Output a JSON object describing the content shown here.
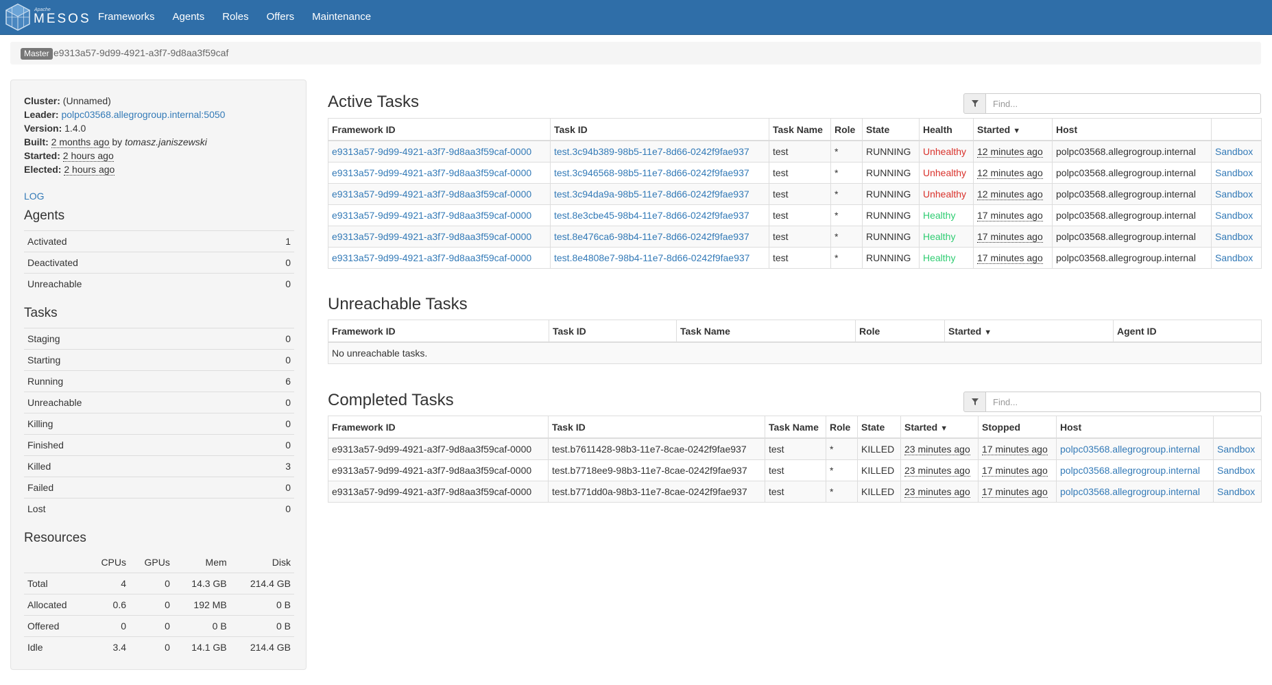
{
  "nav": {
    "logo_small": "Apache",
    "logo_text": "MESOS",
    "items": [
      "Frameworks",
      "Agents",
      "Roles",
      "Offers",
      "Maintenance"
    ]
  },
  "breadcrumb": {
    "badge": "Master",
    "master_id": "e9313a57-9d99-4921-a3f7-9d8aa3f59caf"
  },
  "sidebar": {
    "cluster_label": "Cluster:",
    "cluster_value": "(Unnamed)",
    "leader_label": "Leader:",
    "leader_value": "polpc03568.allegrogroup.internal:5050",
    "version_label": "Version:",
    "version_value": "1.4.0",
    "built_label": "Built:",
    "built_value": "2 months ago",
    "built_by": "by",
    "built_user": "tomasz.janiszewski",
    "started_label": "Started:",
    "started_value": "2 hours ago",
    "elected_label": "Elected:",
    "elected_value": "2 hours ago",
    "log_link": "LOG",
    "agents_title": "Agents",
    "agents": [
      {
        "label": "Activated",
        "value": "1"
      },
      {
        "label": "Deactivated",
        "value": "0"
      },
      {
        "label": "Unreachable",
        "value": "0"
      }
    ],
    "tasks_title": "Tasks",
    "tasks": [
      {
        "label": "Staging",
        "value": "0"
      },
      {
        "label": "Starting",
        "value": "0"
      },
      {
        "label": "Running",
        "value": "6"
      },
      {
        "label": "Unreachable",
        "value": "0"
      },
      {
        "label": "Killing",
        "value": "0"
      },
      {
        "label": "Finished",
        "value": "0"
      },
      {
        "label": "Killed",
        "value": "3"
      },
      {
        "label": "Failed",
        "value": "0"
      },
      {
        "label": "Lost",
        "value": "0"
      }
    ],
    "resources_title": "Resources",
    "resources_headers": [
      "",
      "CPUs",
      "GPUs",
      "Mem",
      "Disk"
    ],
    "resources": [
      [
        "Total",
        "4",
        "0",
        "14.3 GB",
        "214.4 GB"
      ],
      [
        "Allocated",
        "0.6",
        "0",
        "192 MB",
        "0 B"
      ],
      [
        "Offered",
        "0",
        "0",
        "0 B",
        "0 B"
      ],
      [
        "Idle",
        "3.4",
        "0",
        "14.1 GB",
        "214.4 GB"
      ]
    ]
  },
  "active": {
    "title": "Active Tasks",
    "find_placeholder": "Find...",
    "headers": [
      "Framework ID",
      "Task ID",
      "Task Name",
      "Role",
      "State",
      "Health",
      "Started",
      "Host",
      ""
    ],
    "sort_arrow": "▼",
    "rows": [
      {
        "framework": "e9313a57-9d99-4921-a3f7-9d8aa3f59caf-0000",
        "task": "test.3c94b389-98b5-11e7-8d66-0242f9fae937",
        "name": "test",
        "role": "*",
        "state": "RUNNING",
        "health": "Unhealthy",
        "started": "12 minutes ago",
        "host": "polpc03568.allegrogroup.internal",
        "link": "Sandbox"
      },
      {
        "framework": "e9313a57-9d99-4921-a3f7-9d8aa3f59caf-0000",
        "task": "test.3c946568-98b5-11e7-8d66-0242f9fae937",
        "name": "test",
        "role": "*",
        "state": "RUNNING",
        "health": "Unhealthy",
        "started": "12 minutes ago",
        "host": "polpc03568.allegrogroup.internal",
        "link": "Sandbox"
      },
      {
        "framework": "e9313a57-9d99-4921-a3f7-9d8aa3f59caf-0000",
        "task": "test.3c94da9a-98b5-11e7-8d66-0242f9fae937",
        "name": "test",
        "role": "*",
        "state": "RUNNING",
        "health": "Unhealthy",
        "started": "12 minutes ago",
        "host": "polpc03568.allegrogroup.internal",
        "link": "Sandbox"
      },
      {
        "framework": "e9313a57-9d99-4921-a3f7-9d8aa3f59caf-0000",
        "task": "test.8e3cbe45-98b4-11e7-8d66-0242f9fae937",
        "name": "test",
        "role": "*",
        "state": "RUNNING",
        "health": "Healthy",
        "started": "17 minutes ago",
        "host": "polpc03568.allegrogroup.internal",
        "link": "Sandbox"
      },
      {
        "framework": "e9313a57-9d99-4921-a3f7-9d8aa3f59caf-0000",
        "task": "test.8e476ca6-98b4-11e7-8d66-0242f9fae937",
        "name": "test",
        "role": "*",
        "state": "RUNNING",
        "health": "Healthy",
        "started": "17 minutes ago",
        "host": "polpc03568.allegrogroup.internal",
        "link": "Sandbox"
      },
      {
        "framework": "e9313a57-9d99-4921-a3f7-9d8aa3f59caf-0000",
        "task": "test.8e4808e7-98b4-11e7-8d66-0242f9fae937",
        "name": "test",
        "role": "*",
        "state": "RUNNING",
        "health": "Healthy",
        "started": "17 minutes ago",
        "host": "polpc03568.allegrogroup.internal",
        "link": "Sandbox"
      }
    ]
  },
  "unreachable": {
    "title": "Unreachable Tasks",
    "headers": [
      "Framework ID",
      "Task ID",
      "Task Name",
      "Role",
      "Started",
      "Agent ID"
    ],
    "sort_arrow": "▼",
    "empty": "No unreachable tasks."
  },
  "completed": {
    "title": "Completed Tasks",
    "find_placeholder": "Find...",
    "headers": [
      "Framework ID",
      "Task ID",
      "Task Name",
      "Role",
      "State",
      "Started",
      "Stopped",
      "Host",
      ""
    ],
    "sort_arrow": "▼",
    "rows": [
      {
        "framework": "e9313a57-9d99-4921-a3f7-9d8aa3f59caf-0000",
        "task": "test.b7611428-98b3-11e7-8cae-0242f9fae937",
        "name": "test",
        "role": "*",
        "state": "KILLED",
        "started": "23 minutes ago",
        "stopped": "17 minutes ago",
        "host": "polpc03568.allegrogroup.internal",
        "link": "Sandbox"
      },
      {
        "framework": "e9313a57-9d99-4921-a3f7-9d8aa3f59caf-0000",
        "task": "test.b7718ee9-98b3-11e7-8cae-0242f9fae937",
        "name": "test",
        "role": "*",
        "state": "KILLED",
        "started": "23 minutes ago",
        "stopped": "17 minutes ago",
        "host": "polpc03568.allegrogroup.internal",
        "link": "Sandbox"
      },
      {
        "framework": "e9313a57-9d99-4921-a3f7-9d8aa3f59caf-0000",
        "task": "test.b771dd0a-98b3-11e7-8cae-0242f9fae937",
        "name": "test",
        "role": "*",
        "state": "KILLED",
        "started": "23 minutes ago",
        "stopped": "17 minutes ago",
        "host": "polpc03568.allegrogroup.internal",
        "link": "Sandbox"
      }
    ]
  }
}
